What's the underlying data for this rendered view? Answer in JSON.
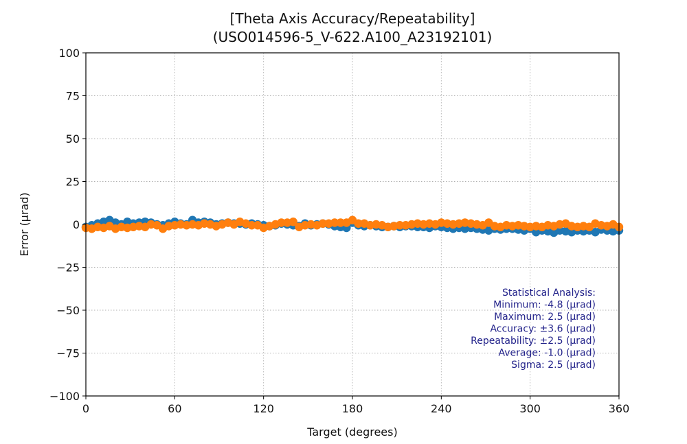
{
  "chart_data": {
    "type": "scatter",
    "title": "[Theta Axis Accuracy/Repeatability]",
    "subtitle": "(USO014596-5_V-622.A100_A23192101)",
    "xlabel": "Target (degrees)",
    "ylabel": "Error (µrad)",
    "xlim": [
      0,
      360
    ],
    "ylim": [
      -100,
      100
    ],
    "xticks": [
      0,
      60,
      120,
      180,
      240,
      300,
      360
    ],
    "yticks": [
      100,
      75,
      50,
      25,
      0,
      -25,
      -50,
      -75,
      -100
    ],
    "xtick_labels": [
      "0",
      "60",
      "120",
      "180",
      "240",
      "300",
      "360"
    ],
    "ytick_labels": [
      "100",
      "75",
      "50",
      "25",
      "0",
      "−25",
      "−50",
      "−75",
      "−100"
    ],
    "grid": true,
    "series": [
      {
        "color": "#1f77b4",
        "x": [
          0,
          4,
          8,
          12,
          16,
          20,
          24,
          28,
          32,
          36,
          40,
          44,
          48,
          52,
          56,
          60,
          64,
          68,
          72,
          76,
          80,
          84,
          88,
          92,
          96,
          100,
          104,
          108,
          112,
          116,
          120,
          124,
          128,
          132,
          136,
          140,
          144,
          148,
          152,
          156,
          160,
          164,
          168,
          172,
          176,
          180,
          184,
          188,
          192,
          196,
          200,
          204,
          208,
          212,
          216,
          220,
          224,
          228,
          232,
          236,
          240,
          244,
          248,
          252,
          256,
          260,
          264,
          268,
          272,
          276,
          280,
          284,
          288,
          292,
          296,
          300,
          304,
          308,
          312,
          316,
          320,
          324,
          328,
          332,
          336,
          340,
          344,
          348,
          352,
          356,
          360
        ],
        "y": [
          -1.5,
          -0.5,
          0.5,
          1.5,
          2.5,
          1.0,
          0.0,
          1.5,
          0.5,
          1.0,
          1.5,
          1.0,
          0.0,
          -0.5,
          0.5,
          1.5,
          0.5,
          0.0,
          2.5,
          1.0,
          1.5,
          1.0,
          0.0,
          0.5,
          1.0,
          0.5,
          0.5,
          0.0,
          0.5,
          0.0,
          -0.5,
          -1.0,
          -0.5,
          0.5,
          0.0,
          -0.5,
          -1.0,
          0.5,
          -0.5,
          0.0,
          0.5,
          0.0,
          -1.0,
          -1.5,
          -2.0,
          1.0,
          -0.5,
          -1.0,
          -0.5,
          -1.0,
          -1.5,
          -1.5,
          -1.0,
          -1.5,
          -1.0,
          -1.0,
          -1.5,
          -1.5,
          -2.0,
          -1.0,
          -1.5,
          -2.0,
          -2.5,
          -2.0,
          -2.5,
          -2.0,
          -2.5,
          -3.0,
          -3.5,
          -2.5,
          -3.0,
          -2.5,
          -2.5,
          -3.0,
          -3.5,
          -2.5,
          -4.5,
          -3.5,
          -4.0,
          -4.8,
          -3.5,
          -4.0,
          -4.5,
          -3.5,
          -4.0,
          -3.5,
          -4.5,
          -3.0,
          -3.5,
          -4.0,
          -3.5
        ]
      },
      {
        "color": "#ff7f0e",
        "x": [
          0,
          4,
          8,
          12,
          16,
          20,
          24,
          28,
          32,
          36,
          40,
          44,
          48,
          52,
          56,
          60,
          64,
          68,
          72,
          76,
          80,
          84,
          88,
          92,
          96,
          100,
          104,
          108,
          112,
          116,
          120,
          124,
          128,
          132,
          136,
          140,
          144,
          148,
          152,
          156,
          160,
          164,
          168,
          172,
          176,
          180,
          184,
          188,
          192,
          196,
          200,
          204,
          208,
          212,
          216,
          220,
          224,
          228,
          232,
          236,
          240,
          244,
          248,
          252,
          256,
          260,
          264,
          268,
          272,
          276,
          280,
          284,
          288,
          292,
          296,
          300,
          304,
          308,
          312,
          316,
          320,
          324,
          328,
          332,
          336,
          340,
          344,
          348,
          352,
          356,
          360
        ],
        "y": [
          -2.0,
          -2.5,
          -1.5,
          -2.0,
          -1.0,
          -2.5,
          -1.5,
          -2.0,
          -1.5,
          -1.0,
          -1.5,
          0.0,
          -0.5,
          -2.5,
          -1.0,
          -0.5,
          0.0,
          -0.5,
          0.0,
          -0.5,
          0.5,
          0.0,
          -1.0,
          0.0,
          1.0,
          0.0,
          1.5,
          0.5,
          -0.5,
          -0.5,
          -2.0,
          -1.0,
          0.0,
          1.0,
          1.0,
          1.5,
          -1.5,
          -0.5,
          0.0,
          -0.5,
          0.5,
          0.5,
          1.0,
          1.0,
          1.0,
          2.5,
          0.5,
          0.5,
          -0.5,
          0.0,
          -0.5,
          -1.5,
          -1.0,
          -0.5,
          -0.5,
          0.0,
          0.5,
          0.0,
          0.5,
          0.0,
          1.0,
          0.5,
          0.0,
          0.5,
          1.0,
          0.5,
          0.0,
          -0.5,
          1.0,
          -1.0,
          -1.5,
          -0.5,
          -1.0,
          -0.5,
          -1.0,
          -1.5,
          -1.0,
          -1.5,
          -0.5,
          -1.0,
          0.0,
          0.5,
          -1.0,
          -1.5,
          -1.0,
          -1.5,
          0.5,
          -0.5,
          -1.0,
          0.0,
          -1.5
        ]
      }
    ],
    "annotation": [
      "Statistical Analysis:",
      "Minimum: -4.8 (µrad)",
      "Maximum: 2.5 (µrad)",
      "Accuracy: ±3.6 (µrad)",
      "Repeatability: ±2.5 (µrad)",
      "Average: -1.0 (µrad)",
      "Sigma: 2.5 (µrad)"
    ],
    "annotation_color": "#22228a"
  }
}
